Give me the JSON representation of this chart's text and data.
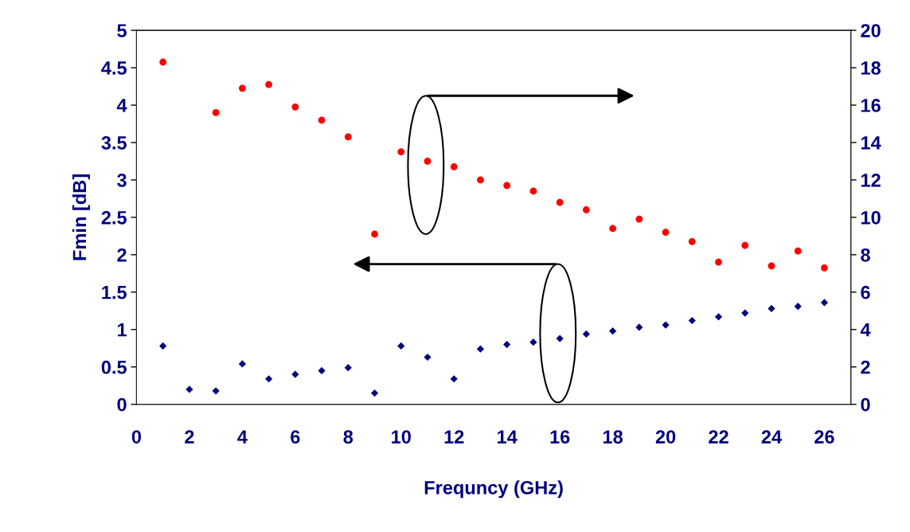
{
  "chart_data": {
    "type": "scatter",
    "xlabel": "Frequncy (GHz)",
    "ylabel": "Fmin [dB]",
    "x": [
      1,
      2,
      3,
      4,
      5,
      6,
      7,
      8,
      9,
      10,
      11,
      12,
      13,
      14,
      15,
      16,
      17,
      18,
      19,
      20,
      21,
      22,
      23,
      24,
      25,
      26
    ],
    "series": [
      {
        "color": "#000080",
        "marker": "diamond",
        "values": [
          0.78,
          0.2,
          0.18,
          0.54,
          0.34,
          0.4,
          0.45,
          0.49,
          0.15,
          0.78,
          0.63,
          0.34,
          0.74,
          0.8,
          0.83,
          0.88,
          0.94,
          0.98,
          1.03,
          1.06,
          1.12,
          1.17,
          1.22,
          1.28,
          1.31,
          1.36
        ]
      },
      {
        "color": "#ff0000",
        "marker": "circle",
        "axis": "y2",
        "values": [
          18.3,
          null,
          15.6,
          16.9,
          17.1,
          15.9,
          15.2,
          14.3,
          9.1,
          13.5,
          13.0,
          12.7,
          12.0,
          11.7,
          11.4,
          10.8,
          10.4,
          9.4,
          9.9,
          9.2,
          8.7,
          7.6,
          8.5,
          7.4,
          8.2,
          7.3
        ]
      }
    ],
    "xlim": [
      0,
      27
    ],
    "xticks": [
      0,
      2,
      4,
      6,
      8,
      10,
      12,
      14,
      16,
      18,
      20,
      22,
      24,
      26
    ],
    "ylim": [
      0,
      5
    ],
    "yticks": [
      0,
      0.5,
      1,
      1.5,
      2,
      2.5,
      3,
      3.5,
      4,
      4.5,
      5
    ],
    "y2lim": [
      0,
      20
    ],
    "y2ticks": [
      0,
      2,
      4,
      6,
      8,
      10,
      12,
      14,
      16,
      18,
      20
    ],
    "grid": false
  }
}
